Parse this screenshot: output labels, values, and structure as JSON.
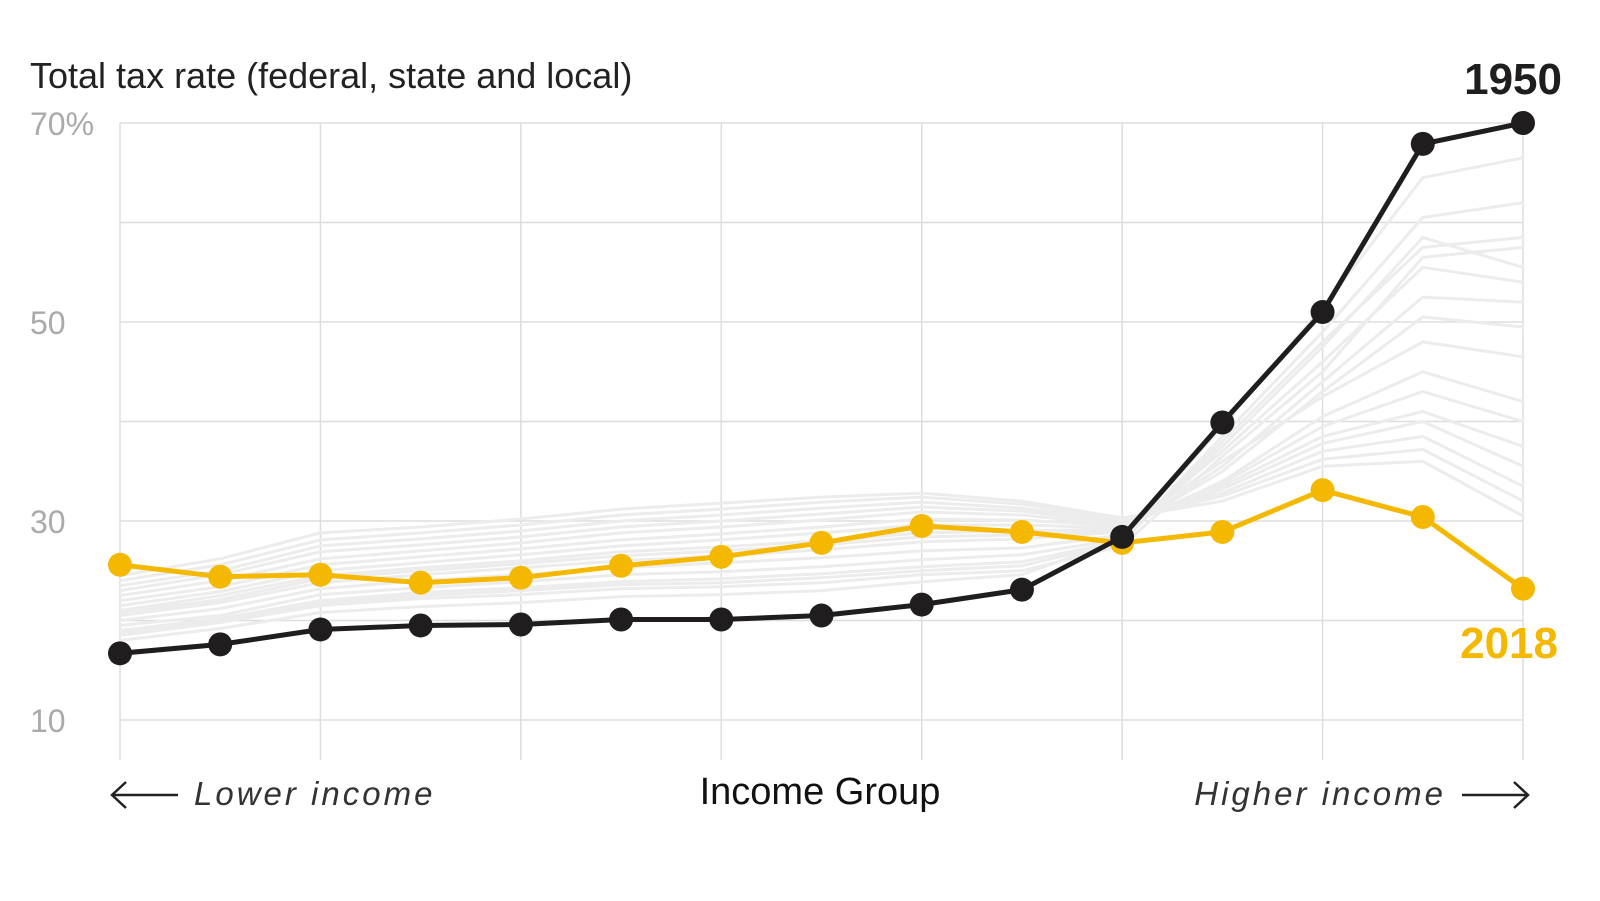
{
  "chart_data": {
    "type": "line",
    "title": "Total tax rate (federal, state and local)",
    "xlabel": "Income Group",
    "x_left_label": "Lower income",
    "x_right_label": "Higher income",
    "x": [
      1,
      2,
      3,
      4,
      5,
      6,
      7,
      8,
      9,
      10,
      11,
      12,
      13,
      14,
      15
    ],
    "ylim": [
      10,
      70
    ],
    "yticks": [
      {
        "value": 70,
        "label": "70%"
      },
      {
        "value": 50,
        "label": "50"
      },
      {
        "value": 30,
        "label": "30"
      },
      {
        "value": 10,
        "label": "10"
      }
    ],
    "grid": true,
    "series": [
      {
        "name": "1950",
        "color": "#1f1d1e",
        "values": [
          16.7,
          17.6,
          19.1,
          19.5,
          19.6,
          20.1,
          20.1,
          20.5,
          21.6,
          23.1,
          28.4,
          39.9,
          51.0,
          67.9,
          70.0
        ]
      },
      {
        "name": "2018",
        "color": "#f5b800",
        "values": [
          25.6,
          24.4,
          24.6,
          23.8,
          24.3,
          25.5,
          26.4,
          27.8,
          29.5,
          28.9,
          27.8,
          28.9,
          33.1,
          30.4,
          23.2
        ]
      }
    ],
    "background_series_color": "#ececec",
    "background_series": [
      [
        18.5,
        19.8,
        21.5,
        22.2,
        22.6,
        23.2,
        23.4,
        23.8,
        24.6,
        25.0,
        27.5,
        36.5,
        45.0,
        56.5,
        57.5
      ],
      [
        19.5,
        20.5,
        22.6,
        23.3,
        23.9,
        24.6,
        24.9,
        25.4,
        26.1,
        26.6,
        28.2,
        37.5,
        47.5,
        58.5,
        55.5
      ],
      [
        20.5,
        21.8,
        23.8,
        24.6,
        25.3,
        26.0,
        26.5,
        27.1,
        27.9,
        28.2,
        28.9,
        35.5,
        44.0,
        52.5,
        52.0
      ],
      [
        21.5,
        22.9,
        25.0,
        25.8,
        26.6,
        27.5,
        28.1,
        28.8,
        29.6,
        29.6,
        29.3,
        34.0,
        40.5,
        45.0,
        42.0
      ],
      [
        22.5,
        24.0,
        26.2,
        27.0,
        27.8,
        28.8,
        29.4,
        30.1,
        30.9,
        30.6,
        29.6,
        33.5,
        38.5,
        41.0,
        37.5
      ],
      [
        23.5,
        25.0,
        27.5,
        28.2,
        29.0,
        30.0,
        30.6,
        31.3,
        31.9,
        31.3,
        30.0,
        32.8,
        37.0,
        38.5,
        33.5
      ],
      [
        24.5,
        26.2,
        28.8,
        29.4,
        30.2,
        31.2,
        31.8,
        32.4,
        32.8,
        32.0,
        30.3,
        32.0,
        35.5,
        36.0,
        30.5
      ],
      [
        21.0,
        22.5,
        24.5,
        25.3,
        26.0,
        26.9,
        27.4,
        28.0,
        28.8,
        29.0,
        29.2,
        36.0,
        42.5,
        48.0,
        46.5
      ],
      [
        19.0,
        20.2,
        22.0,
        22.8,
        23.3,
        23.9,
        24.2,
        24.7,
        25.4,
        25.9,
        28.0,
        38.5,
        49.0,
        60.5,
        62.0
      ],
      [
        18.0,
        19.2,
        20.8,
        21.4,
        21.8,
        22.4,
        22.6,
        23.0,
        23.9,
        24.6,
        28.2,
        39.5,
        51.5,
        64.5,
        66.5
      ],
      [
        20.0,
        21.2,
        23.2,
        24.0,
        24.6,
        25.3,
        25.8,
        26.3,
        27.0,
        27.3,
        28.6,
        37.0,
        46.0,
        55.5,
        54.0
      ],
      [
        22.0,
        23.4,
        25.6,
        26.4,
        27.2,
        28.1,
        28.7,
        29.4,
        30.2,
        30.1,
        29.5,
        33.8,
        39.5,
        43.0,
        40.0
      ],
      [
        23.0,
        24.6,
        26.9,
        27.6,
        28.4,
        29.4,
        30.0,
        30.7,
        31.4,
        31.0,
        29.8,
        33.2,
        37.8,
        40.0,
        35.5
      ],
      [
        24.0,
        25.6,
        28.1,
        28.8,
        29.6,
        30.6,
        31.2,
        31.9,
        32.4,
        31.7,
        30.1,
        32.5,
        36.2,
        37.2,
        32.0
      ],
      [
        18.8,
        20.0,
        21.8,
        22.5,
        23.0,
        23.6,
        23.8,
        24.3,
        25.0,
        25.5,
        27.9,
        38.0,
        48.0,
        57.5,
        58.5
      ],
      [
        20.8,
        22.1,
        24.2,
        25.0,
        25.7,
        26.5,
        27.0,
        27.6,
        28.4,
        28.6,
        29.0,
        35.0,
        43.0,
        50.5,
        49.5
      ]
    ]
  }
}
